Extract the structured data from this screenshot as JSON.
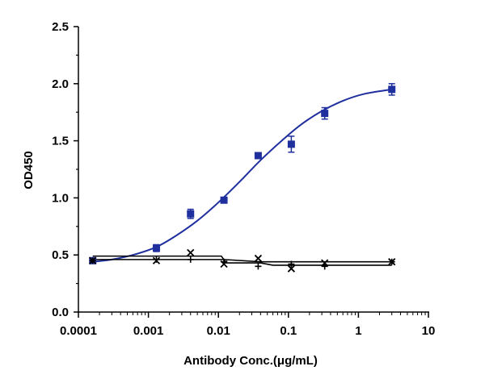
{
  "chart_data": {
    "type": "scatter",
    "xlabel": "Antibody Conc.(μg/mL)",
    "ylabel": "OD450",
    "xscale": "log",
    "xlim": [
      0.0001,
      10
    ],
    "ylim": [
      0,
      2.5
    ],
    "x_ticks": [
      0.0001,
      0.001,
      0.01,
      0.1,
      1,
      10
    ],
    "x_tick_labels": [
      "0.0001",
      "0.001",
      "0.01",
      "0.1",
      "1",
      "10"
    ],
    "y_ticks": [
      0,
      0.5,
      1,
      1.5,
      2,
      2.5
    ],
    "y_tick_labels": [
      "0.0",
      "0.5",
      "1.0",
      "1.5",
      "2.0",
      "2.5"
    ],
    "grid": false,
    "legend": "none",
    "series": [
      {
        "marker": "square",
        "color": "#1f2f9e",
        "fit": "sigmoidal",
        "points": [
          {
            "x": 0.00016,
            "y": 0.45,
            "err": 0.02
          },
          {
            "x": 0.0013,
            "y": 0.56,
            "err": 0.03
          },
          {
            "x": 0.004,
            "y": 0.86,
            "err": 0.04
          },
          {
            "x": 0.012,
            "y": 0.98,
            "err": 0.02
          },
          {
            "x": 0.037,
            "y": 1.37,
            "err": 0.02
          },
          {
            "x": 0.11,
            "y": 1.47,
            "err": 0.07
          },
          {
            "x": 0.33,
            "y": 1.74,
            "err": 0.05
          },
          {
            "x": 3,
            "y": 1.95,
            "err": 0.05
          }
        ],
        "curve": [
          {
            "x": 0.00016,
            "y": 0.44
          },
          {
            "x": 0.0003,
            "y": 0.46
          },
          {
            "x": 0.0006,
            "y": 0.5
          },
          {
            "x": 0.0013,
            "y": 0.57
          },
          {
            "x": 0.0025,
            "y": 0.67
          },
          {
            "x": 0.005,
            "y": 0.8
          },
          {
            "x": 0.01,
            "y": 0.96
          },
          {
            "x": 0.02,
            "y": 1.14
          },
          {
            "x": 0.04,
            "y": 1.33
          },
          {
            "x": 0.08,
            "y": 1.5
          },
          {
            "x": 0.15,
            "y": 1.64
          },
          {
            "x": 0.3,
            "y": 1.76
          },
          {
            "x": 0.6,
            "y": 1.85
          },
          {
            "x": 1.2,
            "y": 1.91
          },
          {
            "x": 3,
            "y": 1.95
          }
        ]
      },
      {
        "marker": "x",
        "color": "#000000",
        "fit": "step",
        "points": [
          {
            "x": 0.00016,
            "y": 0.45
          },
          {
            "x": 0.0013,
            "y": 0.45
          },
          {
            "x": 0.004,
            "y": 0.52
          },
          {
            "x": 0.012,
            "y": 0.42
          },
          {
            "x": 0.037,
            "y": 0.47
          },
          {
            "x": 0.11,
            "y": 0.38
          },
          {
            "x": 0.33,
            "y": 0.43
          },
          {
            "x": 3,
            "y": 0.44
          }
        ],
        "curve": [
          {
            "x": 0.00016,
            "y": 0.49
          },
          {
            "x": 0.011,
            "y": 0.49
          },
          {
            "x": 0.013,
            "y": 0.43
          },
          {
            "x": 0.04,
            "y": 0.43
          },
          {
            "x": 0.06,
            "y": 0.41
          },
          {
            "x": 3,
            "y": 0.41
          }
        ]
      },
      {
        "marker": "plus",
        "color": "#000000",
        "fit": "flat",
        "points": [
          {
            "x": 0.00016,
            "y": 0.45
          },
          {
            "x": 0.0013,
            "y": 0.46
          },
          {
            "x": 0.004,
            "y": 0.46
          },
          {
            "x": 0.012,
            "y": 0.44
          },
          {
            "x": 0.037,
            "y": 0.4
          },
          {
            "x": 0.11,
            "y": 0.42
          },
          {
            "x": 0.33,
            "y": 0.4
          },
          {
            "x": 3,
            "y": 0.44
          }
        ],
        "curve": [
          {
            "x": 0.00016,
            "y": 0.46
          },
          {
            "x": 0.012,
            "y": 0.46
          },
          {
            "x": 0.04,
            "y": 0.44
          },
          {
            "x": 3,
            "y": 0.44
          }
        ]
      }
    ]
  }
}
